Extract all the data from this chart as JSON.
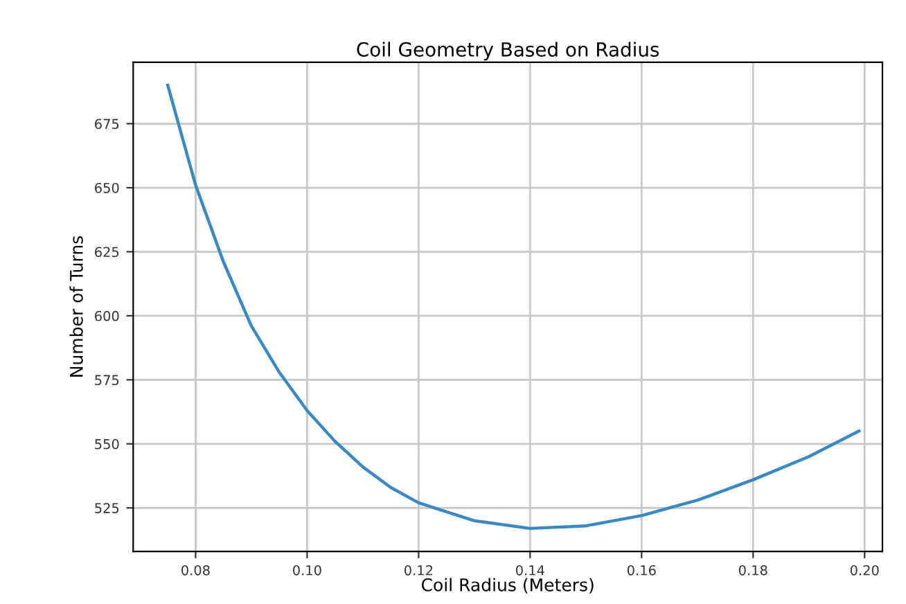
{
  "chart_data": {
    "type": "line",
    "title": "Coil Geometry Based on Radius",
    "xlabel": "Coil Radius (Meters)",
    "ylabel": "Number of Turns",
    "x": [
      0.075,
      0.08,
      0.085,
      0.09,
      0.095,
      0.1,
      0.105,
      0.11,
      0.115,
      0.12,
      0.13,
      0.14,
      0.15,
      0.16,
      0.17,
      0.18,
      0.19,
      0.199
    ],
    "series": [
      {
        "color": "#3a88c4",
        "values": [
          690,
          651,
          621,
          596,
          578,
          563,
          551,
          541,
          533,
          527,
          520,
          517,
          518,
          522,
          528,
          536,
          545,
          555
        ]
      }
    ],
    "xlim": [
      0.0688,
      0.2032
    ],
    "ylim": [
      508,
      699
    ],
    "xticks": [
      {
        "value": 0.08,
        "label": "0.08"
      },
      {
        "value": 0.1,
        "label": "0.10"
      },
      {
        "value": 0.12,
        "label": "0.12"
      },
      {
        "value": 0.14,
        "label": "0.14"
      },
      {
        "value": 0.16,
        "label": "0.16"
      },
      {
        "value": 0.18,
        "label": "0.18"
      },
      {
        "value": 0.2,
        "label": "0.20"
      }
    ],
    "yticks": [
      525,
      550,
      575,
      600,
      625,
      650,
      675
    ],
    "grid": true,
    "marker": "none",
    "line_style": "solid"
  }
}
